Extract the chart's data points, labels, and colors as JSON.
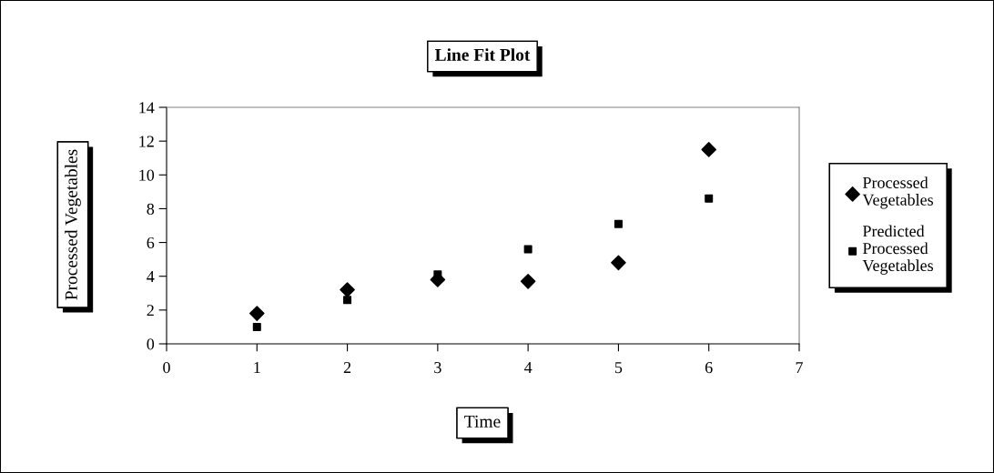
{
  "chart_data": {
    "type": "scatter",
    "title": "Line Fit Plot",
    "xlabel": "Time",
    "ylabel": "Processed Vegetables",
    "x": [
      1,
      2,
      3,
      4,
      5,
      6
    ],
    "series": [
      {
        "name": "Processed Vegetables",
        "color": "#000000",
        "marker": "diamond",
        "values": [
          1.8,
          3.2,
          3.8,
          3.7,
          4.8,
          11.5
        ]
      },
      {
        "name": "Predicted Processed Vegetables",
        "color": "#000000",
        "marker": "square",
        "values": [
          1.0,
          2.6,
          4.1,
          5.6,
          7.1,
          8.6
        ]
      }
    ],
    "xlim": [
      0,
      7
    ],
    "xticks": [
      0,
      1,
      2,
      3,
      4,
      5,
      6,
      7
    ],
    "ylim": [
      0,
      14
    ],
    "yticks": [
      0,
      2,
      4,
      6,
      8,
      10,
      12,
      14
    ],
    "grid": false,
    "legend": "right"
  }
}
